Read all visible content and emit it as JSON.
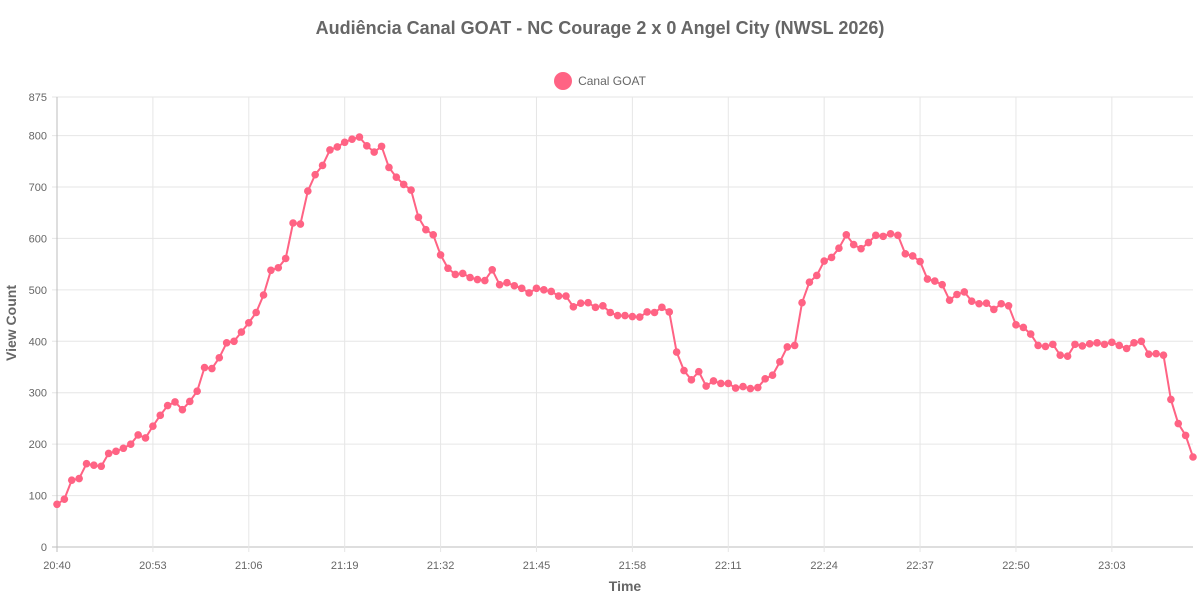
{
  "chart_data": {
    "type": "line",
    "title": "Audiência Canal GOAT - NC Courage 2 x 0 Angel City (NWSL 2026)",
    "xlabel": "Time",
    "ylabel": "View Count",
    "ylim": [
      0,
      875
    ],
    "y_ticks": [
      0,
      100,
      200,
      300,
      400,
      500,
      600,
      700,
      800,
      875
    ],
    "x_tick_labels": [
      "20:40",
      "20:53",
      "21:06",
      "21:19",
      "21:32",
      "21:45",
      "21:58",
      "22:11",
      "22:24",
      "22:37",
      "22:50",
      "23:03"
    ],
    "grid": true,
    "legend_position": "top",
    "color": "#ff6384",
    "series": [
      {
        "name": "Canal GOAT",
        "values": [
          83,
          93,
          130,
          133,
          162,
          159,
          157,
          182,
          186,
          192,
          200,
          218,
          212,
          235,
          256,
          275,
          282,
          267,
          283,
          303,
          349,
          347,
          368,
          397,
          400,
          418,
          436,
          456,
          490,
          538,
          543,
          561,
          630,
          628,
          692,
          724,
          742,
          772,
          778,
          787,
          793,
          797,
          780,
          768,
          779,
          738,
          719,
          705,
          694,
          641,
          617,
          607,
          568,
          542,
          530,
          532,
          524,
          520,
          518,
          539,
          510,
          514,
          508,
          503,
          494,
          503,
          500,
          497,
          488,
          488,
          467,
          474,
          475,
          466,
          469,
          456,
          450,
          450,
          448,
          447,
          457,
          456,
          466,
          457,
          379,
          343,
          325,
          341,
          313,
          323,
          318,
          318,
          309,
          312,
          308,
          310,
          327,
          334,
          360,
          389,
          392,
          475,
          515,
          528,
          556,
          563,
          581,
          607,
          588,
          580,
          592,
          606,
          604,
          609,
          606,
          570,
          566,
          555,
          521,
          517,
          510,
          480,
          491,
          496,
          478,
          473,
          474,
          462,
          473,
          469,
          432,
          427,
          414,
          392,
          390,
          394,
          373,
          371,
          394,
          391,
          395,
          397,
          394,
          398,
          392,
          386,
          397,
          400,
          375,
          376,
          373,
          287,
          240,
          217,
          175
        ]
      }
    ]
  }
}
